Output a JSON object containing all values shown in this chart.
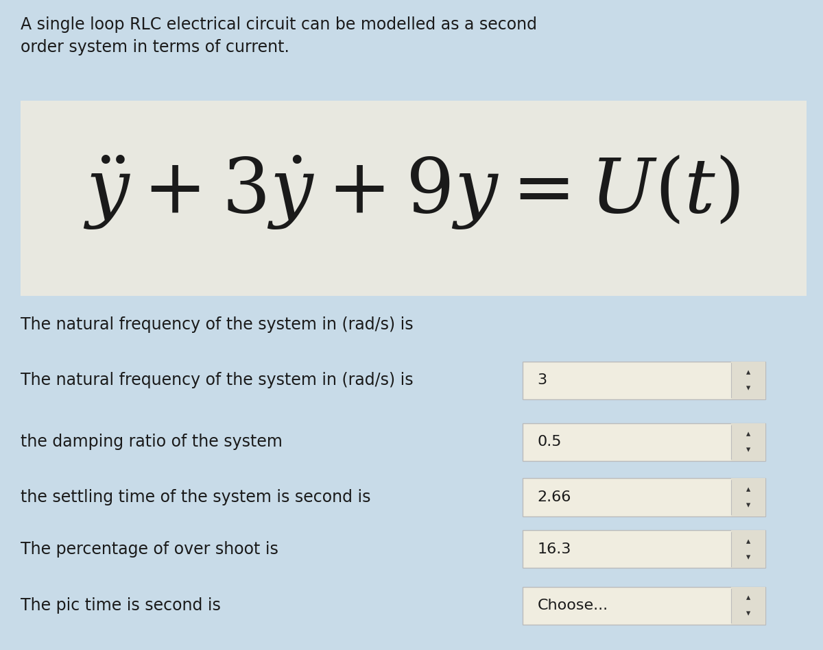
{
  "background_color": "#c8dbe8",
  "title_text": "A single loop RLC electrical circuit can be modelled as a second\norder system in terms of current.",
  "equation": "$\\ddot{y}+3\\dot{y}+9y=U(t)$",
  "equation_box_color": "#e8e8e0",
  "rows": [
    {
      "label": "The natural frequency of the system in (rad/s) is",
      "value": null,
      "box": false
    },
    {
      "label": "The natural frequency of the system in (rad/s) is",
      "value": "3",
      "box": true
    },
    {
      "label": "the damping ratio of the system",
      "value": "0.5",
      "box": true
    },
    {
      "label": "the settling time of the system is second is",
      "value": "2.66",
      "box": true
    },
    {
      "label": "The percentage of over shoot is",
      "value": "16.3",
      "box": true
    },
    {
      "label": "The pic time is second is",
      "value": "Choose...",
      "box": true
    }
  ],
  "text_color": "#1a1a1a",
  "box_fill_color": "#f0ede0",
  "box_border_color": "#bbbbbb",
  "label_fontsize": 17,
  "title_fontsize": 17,
  "eq_fontsize": 80,
  "fig_width": 12.0,
  "fig_height": 9.49,
  "dpi": 100
}
